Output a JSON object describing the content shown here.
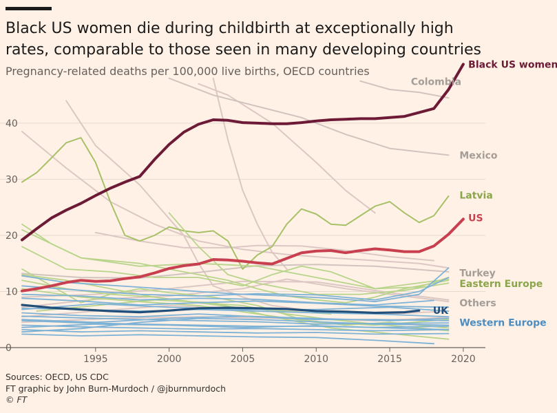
{
  "title": "Black US women die during childbirth at exceptionally high rates, comparable to those seen in many developing countries",
  "subtitle": "Pregnancy-related deaths per 100,000 live births, OECD countries",
  "footer": {
    "sources": "Sources: OECD, US CDC",
    "credit": "FT graphic by John Burn-Murdoch / @jburnmurdoch",
    "copyright": "© FT"
  },
  "colors": {
    "background": "#fff1e5",
    "black_us_women": "#6d1a36",
    "us": "#c8404f",
    "latvia": "#a6c167",
    "eastern_europe": "#b8d48a",
    "western_europe": "#7db2d6",
    "others": "#dcc7c4",
    "uk": "#224f7a",
    "turkey": "#b5aca6",
    "mexico": "#d1c4bf",
    "colombia": "#d1c4bf"
  },
  "chart_data": {
    "type": "line",
    "title": "Black US women die during childbirth at exceptionally high rates, comparable to those seen in many developing countries",
    "subtitle": "Pregnancy-related deaths per 100,000 live births, OECD countries",
    "xlabel": "",
    "ylabel": "",
    "xlim": [
      1990,
      2021
    ],
    "ylim": [
      0,
      48
    ],
    "x_ticks": [
      1995,
      2000,
      2005,
      2010,
      2015,
      2020
    ],
    "y_ticks": [
      0,
      10,
      20,
      30,
      40
    ],
    "grid": true,
    "series": [
      {
        "name": "Colombia",
        "group": "highlight-grey",
        "x": [
          2013,
          2015,
          2017,
          2019
        ],
        "y": [
          47.5,
          46,
          45.5,
          44.5
        ]
      },
      {
        "name": "",
        "group": "others",
        "x": [
          2003,
          2004,
          2005,
          2006,
          2007,
          2008
        ],
        "y": [
          48,
          37,
          28,
          22,
          17,
          14
        ]
      },
      {
        "name": "",
        "group": "others",
        "x": [
          1993,
          1995,
          1998,
          2001,
          2002,
          2003,
          2005,
          2007,
          2009,
          2011
        ],
        "y": [
          44,
          36,
          29,
          20,
          15,
          11,
          9,
          7.5,
          6.8,
          6.2
        ]
      },
      {
        "name": "",
        "group": "others",
        "x": [
          2002,
          2004,
          2007,
          2010,
          2012,
          2014
        ],
        "y": [
          47,
          45,
          40,
          33,
          28,
          24
        ]
      },
      {
        "name": "Mexico",
        "group": "highlight-grey",
        "x": [
          2000,
          2003,
          2006,
          2009,
          2012,
          2015,
          2019
        ],
        "y": [
          48,
          45,
          43,
          41,
          38,
          35.5,
          34.3
        ]
      },
      {
        "name": "Turkey",
        "group": "highlight-grey",
        "x": [
          1990,
          1994,
          1998,
          2002,
          2006,
          2010,
          2014,
          2019
        ],
        "y": [
          13.2,
          12.5,
          12.4,
          13.4,
          14.6,
          14.8,
          14.5,
          13.5
        ]
      },
      {
        "name": "",
        "group": "others",
        "x": [
          1990,
          1993,
          1996,
          1999,
          2002,
          2005,
          2008,
          2011,
          2014,
          2017,
          2019
        ],
        "y": [
          38.5,
          32,
          26,
          22,
          19,
          17.5,
          16.6,
          16,
          15.5,
          15,
          14.2
        ]
      },
      {
        "name": "",
        "group": "others",
        "x": [
          1995,
          1998,
          2001,
          2004,
          2006,
          2009,
          2012,
          2015,
          2018
        ],
        "y": [
          20.5,
          19,
          17.8,
          17.8,
          18.2,
          18.1,
          17.3,
          16.2,
          15.5
        ]
      },
      {
        "name": "",
        "group": "others",
        "x": [
          1990,
          1995,
          2000,
          2005,
          2010,
          2015,
          2019
        ],
        "y": [
          9,
          9.5,
          10.5,
          11.8,
          11.7,
          9.8,
          8.5
        ]
      },
      {
        "name": "",
        "group": "others",
        "x": [
          1990,
          1995,
          2000,
          2005,
          2008,
          2012,
          2015,
          2019
        ],
        "y": [
          7.2,
          8.6,
          9.2,
          10.5,
          12.2,
          10.5,
          9.5,
          8.2
        ]
      },
      {
        "name": "",
        "group": "others",
        "x": [
          1990,
          1995,
          2000,
          2005,
          2010,
          2015,
          2019
        ],
        "y": [
          5.5,
          6.5,
          7.5,
          7,
          6.5,
          6,
          6.5
        ]
      },
      {
        "name": "",
        "group": "others",
        "x": [
          1990,
          1996,
          2002,
          2008,
          2014,
          2019
        ],
        "y": [
          4.5,
          5.2,
          5.5,
          5.2,
          4.8,
          5.4
        ]
      },
      {
        "name": "Latvia",
        "group": "latvia",
        "x": [
          1990,
          1991,
          1992,
          1993,
          1994,
          1995,
          1996,
          1997,
          1998,
          1999,
          2000,
          2001,
          2002,
          2003,
          2004,
          2005,
          2006,
          2007,
          2008,
          2009,
          2010,
          2011,
          2012,
          2013,
          2014,
          2015,
          2016,
          2017,
          2018,
          2019
        ],
        "y": [
          29.5,
          31.2,
          33.8,
          36.5,
          37.4,
          33,
          26,
          20,
          19,
          20,
          21.5,
          20.8,
          20.5,
          20.8,
          19,
          14,
          16.5,
          18,
          22,
          24.7,
          23.8,
          22,
          21.8,
          23.5,
          25.2,
          26,
          24,
          22.3,
          23.5,
          27
        ]
      },
      {
        "name": "",
        "group": "eastern-europe",
        "x": [
          1990,
          1992,
          1994,
          1996,
          1998,
          2000,
          2002,
          2004,
          2006,
          2008,
          2010,
          2012,
          2014,
          2016,
          2018,
          2019
        ],
        "y": [
          22,
          18.5,
          16,
          15.5,
          15,
          14,
          13,
          12,
          10.5,
          9.2,
          8.5,
          8,
          9,
          10.5,
          11.5,
          12
        ]
      },
      {
        "name": "",
        "group": "eastern-europe",
        "x": [
          1990,
          1993,
          1996,
          1999,
          2002,
          2005,
          2007,
          2009,
          2011,
          2014,
          2017,
          2019
        ],
        "y": [
          18,
          14,
          13.5,
          12.5,
          12.5,
          11,
          13,
          14.5,
          13.5,
          10.5,
          10.8,
          12.5
        ]
      },
      {
        "name": "",
        "group": "eastern-europe",
        "x": [
          2000,
          2002,
          2004,
          2006,
          2008,
          2010,
          2013,
          2016,
          2019
        ],
        "y": [
          24,
          18,
          13,
          11.5,
          10.5,
          9.5,
          9.5,
          10.2,
          11.5
        ]
      },
      {
        "name": "",
        "group": "eastern-europe",
        "x": [
          1990,
          1992,
          1994,
          1996,
          1998,
          2000,
          2003,
          2006,
          2009,
          2012,
          2015,
          2019
        ],
        "y": [
          14,
          11,
          8,
          9.5,
          10.5,
          9.8,
          9,
          7.5,
          5,
          4,
          4.5,
          3.5
        ]
      },
      {
        "name": "",
        "group": "eastern-europe",
        "x": [
          1990,
          1993,
          1996,
          1999,
          2002,
          2005,
          2008,
          2011,
          2014,
          2017,
          2019
        ],
        "y": [
          13,
          12,
          10.5,
          9,
          8,
          7.5,
          6,
          5,
          4.2,
          3.5,
          3
        ]
      },
      {
        "name": "",
        "group": "eastern-europe",
        "x": [
          1991,
          1995,
          1999,
          2003,
          2007,
          2011,
          2015,
          2019
        ],
        "y": [
          6.5,
          7.5,
          8.5,
          8,
          5.5,
          3.5,
          2.5,
          1.5
        ]
      },
      {
        "name": "",
        "group": "eastern-europe",
        "x": [
          1990,
          1994,
          1998,
          2002,
          2006,
          2010,
          2014,
          2019
        ],
        "y": [
          10.5,
          9,
          8.2,
          7.5,
          6,
          4.5,
          4,
          5
        ]
      },
      {
        "name": "",
        "group": "eastern-europe",
        "x": [
          1990,
          1994,
          1998,
          2002,
          2006,
          2010,
          2014,
          2019
        ],
        "y": [
          21,
          16,
          14.5,
          15,
          14.5,
          12.5,
          10.5,
          12.2
        ]
      },
      {
        "name": "",
        "group": "eastern-europe",
        "x": [
          1990,
          1993,
          1996,
          1999,
          2002,
          2005,
          2008,
          2011
        ],
        "y": [
          12,
          10.5,
          9.5,
          9,
          8,
          7,
          6.5,
          6
        ]
      },
      {
        "name": "",
        "group": "western-europe",
        "x": [
          1990,
          1993,
          1996,
          1999,
          2002,
          2005,
          2008,
          2011,
          2014,
          2017,
          2019
        ],
        "y": [
          12.8,
          11.6,
          11.1,
          10.6,
          10,
          9.5,
          9.2,
          8.8,
          8.2,
          9.5,
          14.2
        ]
      },
      {
        "name": "",
        "group": "western-europe",
        "x": [
          1990,
          1994,
          1998,
          2002,
          2006,
          2010,
          2014,
          2017,
          2019
        ],
        "y": [
          11,
          10.2,
          9.5,
          9.2,
          9.6,
          9.4,
          8.5,
          10,
          12.5
        ]
      },
      {
        "name": "",
        "group": "western-europe",
        "x": [
          1990,
          1994,
          1998,
          2002,
          2006,
          2010,
          2014,
          2018
        ],
        "y": [
          9.5,
          9.2,
          8.5,
          8.8,
          8.6,
          8,
          7.6,
          8.4
        ]
      },
      {
        "name": "",
        "group": "western-europe",
        "x": [
          1990,
          1994,
          1998,
          2002,
          2006,
          2010,
          2014,
          2019
        ],
        "y": [
          8.8,
          8.3,
          7.6,
          8,
          8.3,
          7.9,
          7.4,
          7.2
        ]
      },
      {
        "name": "",
        "group": "western-europe",
        "x": [
          1990,
          1994,
          1998,
          2002,
          2006,
          2010,
          2014,
          2019
        ],
        "y": [
          7,
          6.8,
          6.5,
          6.8,
          6.5,
          6.2,
          6,
          5.5
        ]
      },
      {
        "name": "",
        "group": "western-europe",
        "x": [
          1990,
          1994,
          1998,
          2002,
          2006,
          2010,
          2014,
          2019
        ],
        "y": [
          6.2,
          5.7,
          5.5,
          6,
          5.5,
          5,
          5,
          4.8
        ]
      },
      {
        "name": "",
        "group": "western-europe",
        "x": [
          1990,
          1994,
          1998,
          2002,
          2006,
          2010,
          2014,
          2019
        ],
        "y": [
          5.6,
          5.3,
          5,
          4.8,
          4.6,
          4.2,
          4.3,
          4.4
        ]
      },
      {
        "name": "",
        "group": "western-europe",
        "x": [
          1990,
          1994,
          1998,
          2002,
          2006,
          2010,
          2014,
          2019
        ],
        "y": [
          4.8,
          4.4,
          4.2,
          4,
          3.8,
          3.8,
          3.6,
          3.8
        ]
      },
      {
        "name": "",
        "group": "western-europe",
        "x": [
          1990,
          1994,
          1998,
          2002,
          2006,
          2010,
          2014,
          2019
        ],
        "y": [
          4,
          3.7,
          3.5,
          3.3,
          3.4,
          3.2,
          3,
          3.2
        ]
      },
      {
        "name": "",
        "group": "western-europe",
        "x": [
          1990,
          1994,
          1998,
          2002,
          2006,
          2010,
          2014,
          2019
        ],
        "y": [
          3.2,
          2.8,
          3,
          2.8,
          2.6,
          2.7,
          2.4,
          2.5
        ]
      },
      {
        "name": "",
        "group": "western-europe",
        "x": [
          1990,
          1994,
          1998,
          2002,
          2006,
          2010,
          2014,
          2018
        ],
        "y": [
          2.4,
          2.1,
          2.3,
          2.1,
          1.9,
          1.8,
          1.3,
          0.7
        ]
      },
      {
        "name": "",
        "group": "western-europe",
        "x": [
          1990,
          1994,
          1998,
          2002,
          2006,
          2010,
          2014,
          2019
        ],
        "y": [
          2.8,
          3.4,
          4.5,
          5.2,
          5,
          4.6,
          4.2,
          4
        ]
      },
      {
        "name": "",
        "group": "western-europe",
        "x": [
          1990,
          1995,
          2000,
          2005,
          2010,
          2015,
          2019
        ],
        "y": [
          6.8,
          7.8,
          7.2,
          6.8,
          6.8,
          7.2,
          6.5
        ]
      },
      {
        "name": "",
        "group": "western-europe",
        "x": [
          1990,
          1995,
          2000,
          2005,
          2010,
          2015,
          2019
        ],
        "y": [
          5,
          4.5,
          5.2,
          5.6,
          5.2,
          4.8,
          5.2
        ]
      },
      {
        "name": "",
        "group": "western-europe",
        "x": [
          1990,
          1995,
          2000,
          2005,
          2010,
          2015,
          2019
        ],
        "y": [
          3.6,
          4.2,
          4,
          3.6,
          3.9,
          3.5,
          3.2
        ]
      },
      {
        "name": "UK",
        "group": "uk",
        "x": [
          1990,
          1992,
          1994,
          1996,
          1998,
          2000,
          2002,
          2004,
          2006,
          2008,
          2010,
          2012,
          2014,
          2016,
          2017
        ],
        "y": [
          7.6,
          7.1,
          6.8,
          6.5,
          6.3,
          6.6,
          7,
          7.1,
          7,
          6.9,
          6.5,
          6.4,
          6.2,
          6.3,
          6.6
        ]
      },
      {
        "name": "US",
        "group": "us",
        "x": [
          1990,
          1991,
          1992,
          1993,
          1994,
          1995,
          1996,
          1997,
          1998,
          1999,
          2000,
          2001,
          2002,
          2003,
          2004,
          2005,
          2006,
          2007,
          2008,
          2009,
          2010,
          2011,
          2012,
          2013,
          2014,
          2015,
          2016,
          2017,
          2018,
          2019,
          2020
        ],
        "y": [
          10.1,
          10.5,
          11,
          11.6,
          12,
          11.8,
          11.9,
          12.3,
          12.6,
          13.3,
          14.1,
          14.6,
          14.9,
          15.7,
          15.6,
          15.4,
          15.1,
          14.9,
          15.9,
          16.9,
          17.2,
          17.3,
          16.9,
          17.3,
          17.6,
          17.4,
          17.1,
          17.1,
          18.1,
          20.2,
          22.9
        ]
      },
      {
        "name": "Black US women",
        "group": "black-us-women",
        "x": [
          1990,
          1991,
          1992,
          1993,
          1994,
          1995,
          1996,
          1997,
          1998,
          1999,
          2000,
          2001,
          2002,
          2003,
          2004,
          2005,
          2006,
          2007,
          2008,
          2009,
          2010,
          2011,
          2012,
          2013,
          2014,
          2015,
          2016,
          2017,
          2018,
          2019,
          2020
        ],
        "y": [
          19.2,
          21.2,
          23.1,
          24.5,
          25.7,
          27.1,
          28.4,
          29.5,
          30.5,
          33.5,
          36.2,
          38.4,
          39.8,
          40.6,
          40.5,
          40.1,
          40,
          39.9,
          39.9,
          40.1,
          40.4,
          40.6,
          40.7,
          40.8,
          40.8,
          41,
          41.2,
          41.9,
          42.6,
          46,
          50.5
        ]
      }
    ],
    "labels": [
      {
        "text": "Black US women",
        "group": "black-us-women",
        "x": 2020.2,
        "y": 50.5
      },
      {
        "text": "Colombia",
        "group": "colombia",
        "x": 2016.3,
        "y": 47.4
      },
      {
        "text": "Mexico",
        "group": "mexico",
        "x": 2019.6,
        "y": 34.3
      },
      {
        "text": "Latvia",
        "group": "latvia",
        "x": 2019.6,
        "y": 27.2
      },
      {
        "text": "US",
        "group": "us",
        "x": 2020.2,
        "y": 23.1
      },
      {
        "text": "Turkey",
        "group": "turkey",
        "x": 2019.6,
        "y": 13.3
      },
      {
        "text": "Eastern Europe",
        "group": "eastern-europe",
        "x": 2019.6,
        "y": 11.4
      },
      {
        "text": "Others",
        "group": "others-label",
        "x": 2019.6,
        "y": 8.0
      },
      {
        "text": "UK",
        "group": "uk",
        "x": 2017.8,
        "y": 6.6
      },
      {
        "text": "Western Europe",
        "group": "western-europe",
        "x": 2019.6,
        "y": 4.5
      }
    ]
  }
}
